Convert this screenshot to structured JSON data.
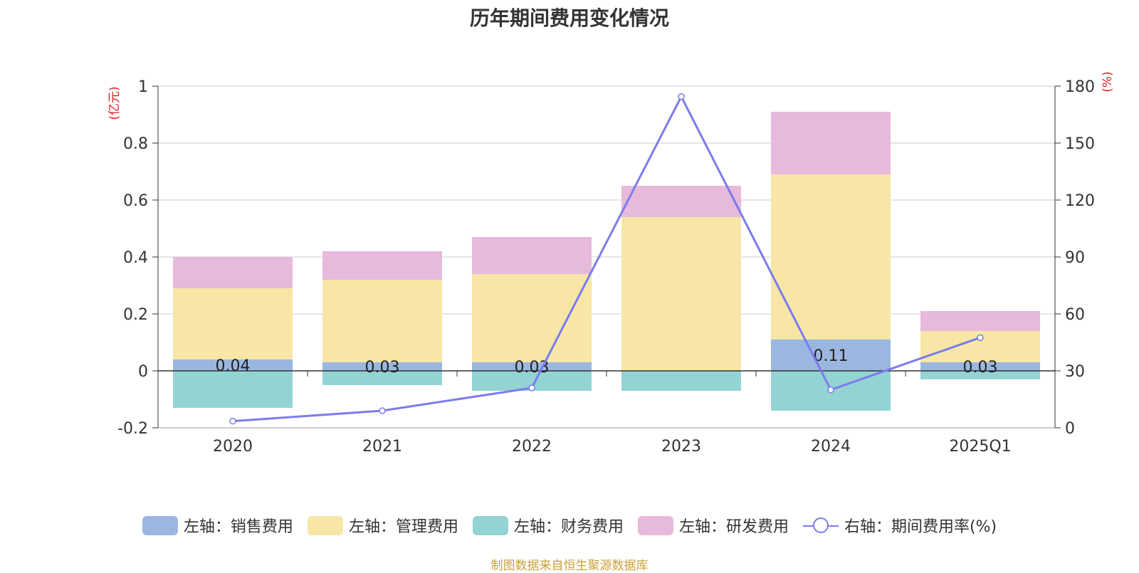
{
  "chart_data": {
    "type": "bar",
    "title": "历年期间费用变化情况",
    "categories": [
      "2020",
      "2021",
      "2022",
      "2023",
      "2024",
      "2025Q1"
    ],
    "left_axis": {
      "unit_label": "(亿元)",
      "ylim": [
        -0.2,
        1
      ],
      "ticks": [
        "-0.2",
        "0",
        "0.2",
        "0.4",
        "0.6",
        "0.8",
        "1"
      ]
    },
    "right_axis": {
      "unit_label": "(%)",
      "ylim": [
        0,
        180
      ],
      "ticks": [
        "0",
        "30",
        "60",
        "90",
        "120",
        "150",
        "180"
      ]
    },
    "series": [
      {
        "name": "左轴：销售费用",
        "axis": "left",
        "kind": "bar",
        "color": "#9bb7e0",
        "values": [
          0.04,
          0.03,
          0.03,
          0.0,
          0.11,
          0.03
        ],
        "labels": [
          "0.04",
          "0.03",
          "0.03",
          "",
          "0.11",
          "0.03"
        ]
      },
      {
        "name": "左轴：管理费用",
        "axis": "left",
        "kind": "bar",
        "color": "#f7e6a6",
        "values": [
          0.25,
          0.29,
          0.31,
          0.54,
          0.58,
          0.11
        ]
      },
      {
        "name": "左轴：财务费用",
        "axis": "left",
        "kind": "bar",
        "color": "#94d3d4",
        "values": [
          -0.13,
          -0.05,
          -0.07,
          -0.07,
          -0.14,
          -0.03
        ]
      },
      {
        "name": "左轴：研发费用",
        "axis": "left",
        "kind": "bar",
        "color": "#e7b9da",
        "values": [
          0.11,
          0.1,
          0.13,
          0.11,
          0.22,
          0.07
        ]
      },
      {
        "name": "右轴：期间费用率(%)",
        "axis": "right",
        "kind": "line",
        "color": "#7b7cee",
        "values": [
          3.5,
          9.0,
          21.0,
          174.5,
          20.0,
          47.5
        ]
      }
    ],
    "grid": true,
    "legend_position": "bottom"
  },
  "source": {
    "text": "制图数据来自恒生聚源数据库",
    "color": "#c9a13b"
  },
  "axis_label_color": "#e02020"
}
